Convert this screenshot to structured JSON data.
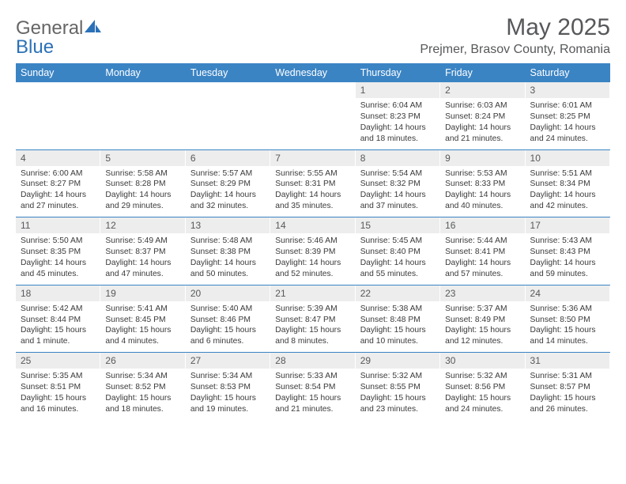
{
  "logo": {
    "text1": "General",
    "text2": "Blue"
  },
  "title": "May 2025",
  "location": "Prejmer, Brasov County, Romania",
  "colors": {
    "header_bg": "#3b84c4",
    "header_text": "#ffffff",
    "daynum_bg": "#ededed",
    "text": "#57585a",
    "rule": "#3b84c4"
  },
  "day_headers": [
    "Sunday",
    "Monday",
    "Tuesday",
    "Wednesday",
    "Thursday",
    "Friday",
    "Saturday"
  ],
  "weeks": [
    [
      null,
      null,
      null,
      null,
      {
        "n": "1",
        "sr": "6:04 AM",
        "ss": "8:23 PM",
        "dl": "14 hours and 18 minutes."
      },
      {
        "n": "2",
        "sr": "6:03 AM",
        "ss": "8:24 PM",
        "dl": "14 hours and 21 minutes."
      },
      {
        "n": "3",
        "sr": "6:01 AM",
        "ss": "8:25 PM",
        "dl": "14 hours and 24 minutes."
      }
    ],
    [
      {
        "n": "4",
        "sr": "6:00 AM",
        "ss": "8:27 PM",
        "dl": "14 hours and 27 minutes."
      },
      {
        "n": "5",
        "sr": "5:58 AM",
        "ss": "8:28 PM",
        "dl": "14 hours and 29 minutes."
      },
      {
        "n": "6",
        "sr": "5:57 AM",
        "ss": "8:29 PM",
        "dl": "14 hours and 32 minutes."
      },
      {
        "n": "7",
        "sr": "5:55 AM",
        "ss": "8:31 PM",
        "dl": "14 hours and 35 minutes."
      },
      {
        "n": "8",
        "sr": "5:54 AM",
        "ss": "8:32 PM",
        "dl": "14 hours and 37 minutes."
      },
      {
        "n": "9",
        "sr": "5:53 AM",
        "ss": "8:33 PM",
        "dl": "14 hours and 40 minutes."
      },
      {
        "n": "10",
        "sr": "5:51 AM",
        "ss": "8:34 PM",
        "dl": "14 hours and 42 minutes."
      }
    ],
    [
      {
        "n": "11",
        "sr": "5:50 AM",
        "ss": "8:35 PM",
        "dl": "14 hours and 45 minutes."
      },
      {
        "n": "12",
        "sr": "5:49 AM",
        "ss": "8:37 PM",
        "dl": "14 hours and 47 minutes."
      },
      {
        "n": "13",
        "sr": "5:48 AM",
        "ss": "8:38 PM",
        "dl": "14 hours and 50 minutes."
      },
      {
        "n": "14",
        "sr": "5:46 AM",
        "ss": "8:39 PM",
        "dl": "14 hours and 52 minutes."
      },
      {
        "n": "15",
        "sr": "5:45 AM",
        "ss": "8:40 PM",
        "dl": "14 hours and 55 minutes."
      },
      {
        "n": "16",
        "sr": "5:44 AM",
        "ss": "8:41 PM",
        "dl": "14 hours and 57 minutes."
      },
      {
        "n": "17",
        "sr": "5:43 AM",
        "ss": "8:43 PM",
        "dl": "14 hours and 59 minutes."
      }
    ],
    [
      {
        "n": "18",
        "sr": "5:42 AM",
        "ss": "8:44 PM",
        "dl": "15 hours and 1 minute."
      },
      {
        "n": "19",
        "sr": "5:41 AM",
        "ss": "8:45 PM",
        "dl": "15 hours and 4 minutes."
      },
      {
        "n": "20",
        "sr": "5:40 AM",
        "ss": "8:46 PM",
        "dl": "15 hours and 6 minutes."
      },
      {
        "n": "21",
        "sr": "5:39 AM",
        "ss": "8:47 PM",
        "dl": "15 hours and 8 minutes."
      },
      {
        "n": "22",
        "sr": "5:38 AM",
        "ss": "8:48 PM",
        "dl": "15 hours and 10 minutes."
      },
      {
        "n": "23",
        "sr": "5:37 AM",
        "ss": "8:49 PM",
        "dl": "15 hours and 12 minutes."
      },
      {
        "n": "24",
        "sr": "5:36 AM",
        "ss": "8:50 PM",
        "dl": "15 hours and 14 minutes."
      }
    ],
    [
      {
        "n": "25",
        "sr": "5:35 AM",
        "ss": "8:51 PM",
        "dl": "15 hours and 16 minutes."
      },
      {
        "n": "26",
        "sr": "5:34 AM",
        "ss": "8:52 PM",
        "dl": "15 hours and 18 minutes."
      },
      {
        "n": "27",
        "sr": "5:34 AM",
        "ss": "8:53 PM",
        "dl": "15 hours and 19 minutes."
      },
      {
        "n": "28",
        "sr": "5:33 AM",
        "ss": "8:54 PM",
        "dl": "15 hours and 21 minutes."
      },
      {
        "n": "29",
        "sr": "5:32 AM",
        "ss": "8:55 PM",
        "dl": "15 hours and 23 minutes."
      },
      {
        "n": "30",
        "sr": "5:32 AM",
        "ss": "8:56 PM",
        "dl": "15 hours and 24 minutes."
      },
      {
        "n": "31",
        "sr": "5:31 AM",
        "ss": "8:57 PM",
        "dl": "15 hours and 26 minutes."
      }
    ]
  ],
  "labels": {
    "sunrise": "Sunrise: ",
    "sunset": "Sunset: ",
    "daylight": "Daylight: "
  }
}
